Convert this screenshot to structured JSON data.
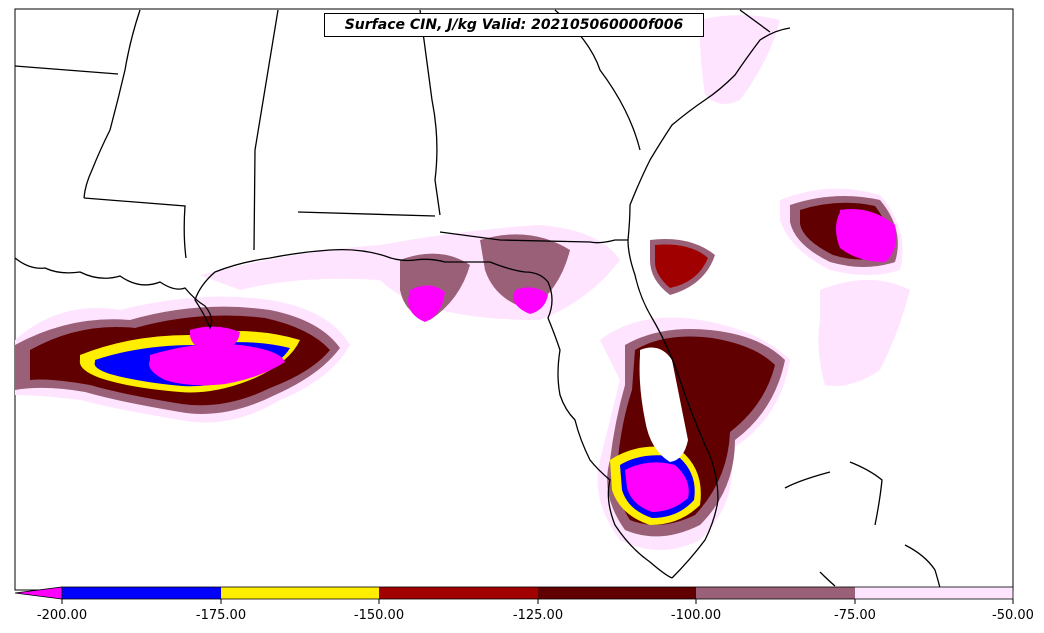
{
  "title": "Surface CIN, J/kg Valid: 202105060000f006",
  "colorbar": {
    "ticks": [
      "-200.00",
      "-175.00",
      "-150.00",
      "-125.00",
      "-100.00",
      "-75.00",
      "-50.00"
    ],
    "extend_color": "#ff00ff",
    "bins": [
      {
        "range": "-200 to -175",
        "color": "#0000ff"
      },
      {
        "range": "-175 to -150",
        "color": "#ffee00"
      },
      {
        "range": "-150 to -125",
        "color": "#a00000"
      },
      {
        "range": "-125 to -100",
        "color": "#600000"
      },
      {
        "range": "-100 to -75",
        "color": "#9a6078"
      },
      {
        "range": "-75 to -50",
        "color": "#ffe4ff"
      }
    ]
  },
  "colors": {
    "background": "#ffffff",
    "boundary": "#000000"
  }
}
